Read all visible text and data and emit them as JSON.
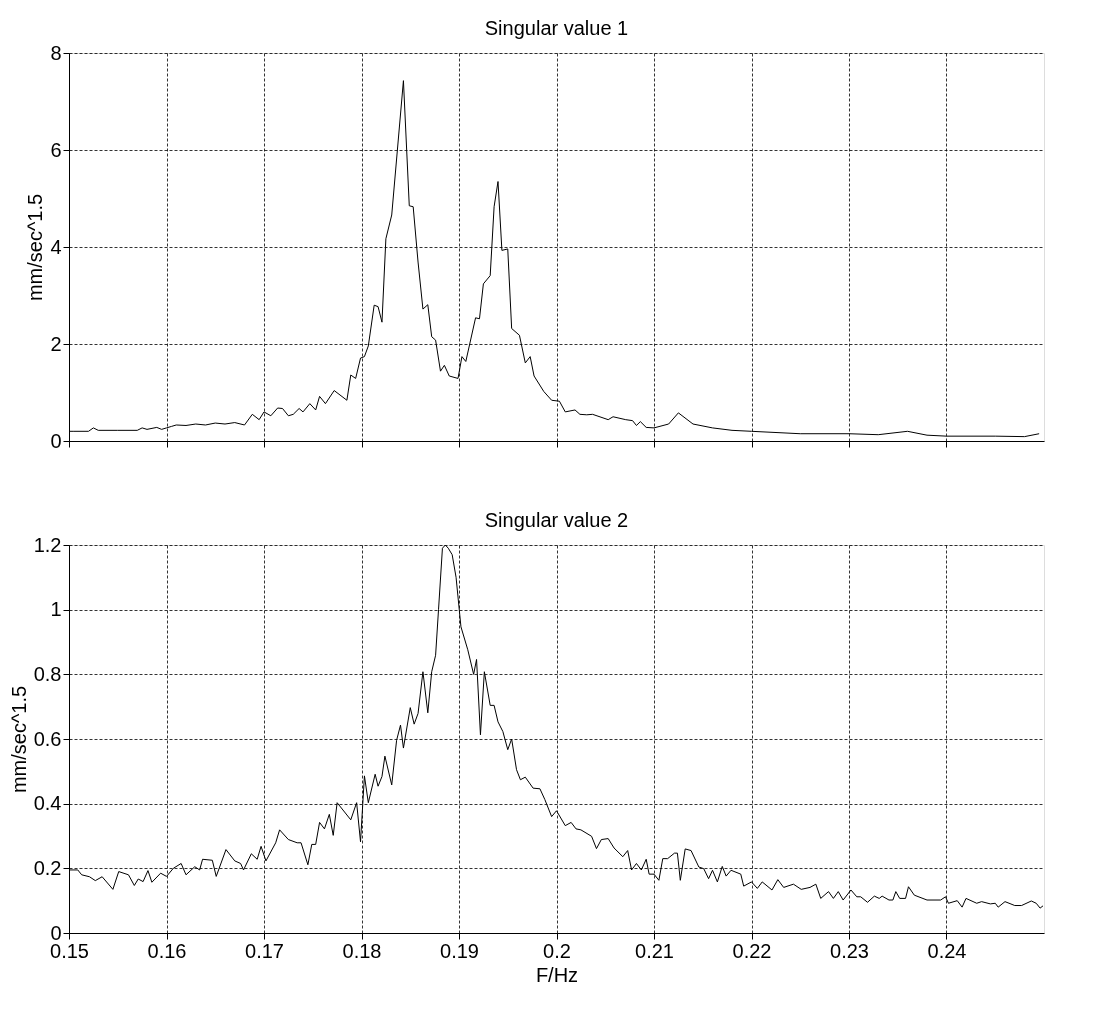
{
  "chart_data": [
    {
      "type": "line",
      "title": "Singular value 1",
      "ylabel": "mm/sec^1.5",
      "color": "#000000",
      "grid": true,
      "tick_labels": "y",
      "line_style": "solid",
      "xlim": [
        0.15,
        0.25
      ],
      "xticks": [
        0.15,
        0.16,
        0.17,
        0.18,
        0.19,
        0.2,
        0.21,
        0.22,
        0.23,
        0.24
      ],
      "ylim": [
        0,
        8
      ],
      "yticks": [
        0,
        2,
        4,
        6,
        8
      ],
      "x": [
        0.15,
        0.1505,
        0.152,
        0.1525,
        0.153,
        0.155,
        0.157,
        0.1575,
        0.158,
        0.159,
        0.1595,
        0.16,
        0.1605,
        0.161,
        0.162,
        0.163,
        0.164,
        0.165,
        0.166,
        0.167,
        0.168,
        0.1688,
        0.1695,
        0.17,
        0.1707,
        0.1714,
        0.1719,
        0.1725,
        0.173,
        0.1736,
        0.174,
        0.1747,
        0.1753,
        0.1757,
        0.1763,
        0.1772,
        0.1785,
        0.1789,
        0.1794,
        0.1799,
        0.1803,
        0.1807,
        0.1813,
        0.1817,
        0.1821,
        0.1825,
        0.1831,
        0.1843,
        0.1849,
        0.1853,
        0.1858,
        0.1863,
        0.1868,
        0.1872,
        0.1876,
        0.1881,
        0.1885,
        0.189,
        0.1899,
        0.1903,
        0.1907,
        0.1917,
        0.1921,
        0.1925,
        0.1932,
        0.1936,
        0.194,
        0.1944,
        0.195,
        0.1954,
        0.1962,
        0.1968,
        0.1973,
        0.1977,
        0.1987,
        0.1995,
        0.2003,
        0.2009,
        0.2019,
        0.2024,
        0.2031,
        0.2037,
        0.2053,
        0.2058,
        0.2071,
        0.2078,
        0.2082,
        0.2086,
        0.2092,
        0.21,
        0.2115,
        0.2125,
        0.214,
        0.216,
        0.218,
        0.22,
        0.225,
        0.23,
        0.233,
        0.236,
        0.238,
        0.24,
        0.245,
        0.248,
        0.2495
      ],
      "values": [
        0.2,
        0.2,
        0.2,
        0.27,
        0.22,
        0.22,
        0.22,
        0.27,
        0.24,
        0.28,
        0.24,
        0.27,
        0.3,
        0.33,
        0.32,
        0.35,
        0.33,
        0.37,
        0.35,
        0.38,
        0.33,
        0.55,
        0.44,
        0.6,
        0.52,
        0.68,
        0.67,
        0.52,
        0.55,
        0.67,
        0.6,
        0.77,
        0.64,
        0.92,
        0.77,
        1.04,
        0.84,
        1.36,
        1.29,
        1.71,
        1.74,
        1.96,
        2.8,
        2.77,
        2.45,
        4.17,
        4.66,
        7.43,
        4.85,
        4.83,
        3.69,
        2.72,
        2.81,
        2.15,
        2.08,
        1.44,
        1.56,
        1.34,
        1.29,
        1.74,
        1.64,
        2.54,
        2.52,
        3.24,
        3.41,
        4.83,
        5.35,
        3.93,
        3.96,
        2.32,
        2.18,
        1.61,
        1.74,
        1.34,
        1.02,
        0.84,
        0.82,
        0.6,
        0.64,
        0.55,
        0.54,
        0.55,
        0.44,
        0.5,
        0.44,
        0.42,
        0.32,
        0.4,
        0.28,
        0.27,
        0.35,
        0.58,
        0.35,
        0.27,
        0.22,
        0.2,
        0.15,
        0.15,
        0.13,
        0.2,
        0.12,
        0.1,
        0.1,
        0.09,
        0.15
      ]
    },
    {
      "type": "line",
      "title": "Singular value 2",
      "xlabel": "F/Hz",
      "ylabel": "mm/sec^1.5",
      "color": "#000000",
      "grid": true,
      "line_style": "solid",
      "xlim": [
        0.15,
        0.25
      ],
      "xticks": [
        0.15,
        0.16,
        0.17,
        0.18,
        0.19,
        0.2,
        0.21,
        0.22,
        0.23,
        0.24
      ],
      "ylim": [
        0,
        1.2
      ],
      "yticks": [
        0,
        0.2,
        0.4,
        0.6,
        0.8,
        1,
        1.2
      ],
      "x": [
        0.15,
        0.1509,
        0.1513,
        0.1521,
        0.1527,
        0.1534,
        0.1545,
        0.1551,
        0.1561,
        0.1567,
        0.1571,
        0.1576,
        0.1581,
        0.1585,
        0.1594,
        0.16,
        0.1607,
        0.1615,
        0.162,
        0.1629,
        0.1634,
        0.1637,
        0.1647,
        0.1651,
        0.1661,
        0.167,
        0.1676,
        0.1679,
        0.1687,
        0.1693,
        0.1697,
        0.1702,
        0.1712,
        0.1716,
        0.1725,
        0.1734,
        0.1738,
        0.1745,
        0.1749,
        0.1753,
        0.1757,
        0.1762,
        0.1767,
        0.1771,
        0.1775,
        0.1789,
        0.1795,
        0.1799,
        0.1803,
        0.1807,
        0.1814,
        0.1817,
        0.1821,
        0.1824,
        0.1831,
        0.1836,
        0.184,
        0.1843,
        0.185,
        0.1854,
        0.1858,
        0.1863,
        0.1868,
        0.1872,
        0.1876,
        0.1879,
        0.1883,
        0.1886,
        0.1889,
        0.1893,
        0.1897,
        0.1902,
        0.1909,
        0.1915,
        0.1918,
        0.1922,
        0.1926,
        0.1932,
        0.1936,
        0.194,
        0.1945,
        0.195,
        0.1954,
        0.1959,
        0.1963,
        0.1968,
        0.1976,
        0.1983,
        0.1988,
        0.1995,
        0.2,
        0.2009,
        0.2015,
        0.202,
        0.2025,
        0.2036,
        0.2041,
        0.2046,
        0.2053,
        0.2059,
        0.2068,
        0.2073,
        0.2077,
        0.2082,
        0.2087,
        0.2092,
        0.2095,
        0.21,
        0.2105,
        0.2109,
        0.2114,
        0.2121,
        0.2124,
        0.2127,
        0.2132,
        0.2138,
        0.2146,
        0.2151,
        0.2156,
        0.216,
        0.2165,
        0.217,
        0.2174,
        0.2179,
        0.2189,
        0.2192,
        0.22,
        0.2206,
        0.2211,
        0.2221,
        0.2227,
        0.2233,
        0.2243,
        0.2251,
        0.226,
        0.2266,
        0.2271,
        0.2279,
        0.2284,
        0.2289,
        0.2294,
        0.2302,
        0.2308,
        0.2312,
        0.2319,
        0.2326,
        0.2331,
        0.2334,
        0.2341,
        0.2345,
        0.2348,
        0.2352,
        0.2358,
        0.2361,
        0.2367,
        0.238,
        0.2394,
        0.2399,
        0.2402,
        0.2411,
        0.2416,
        0.242,
        0.2431,
        0.2436,
        0.2445,
        0.245,
        0.2453,
        0.246,
        0.247,
        0.2477,
        0.2487,
        0.2492,
        0.2496,
        0.2499
      ],
      "values": [
        0.195,
        0.195,
        0.18,
        0.174,
        0.162,
        0.174,
        0.135,
        0.19,
        0.18,
        0.147,
        0.167,
        0.159,
        0.193,
        0.157,
        0.185,
        0.175,
        0.2,
        0.215,
        0.18,
        0.205,
        0.195,
        0.228,
        0.225,
        0.175,
        0.258,
        0.223,
        0.215,
        0.195,
        0.245,
        0.228,
        0.268,
        0.223,
        0.279,
        0.319,
        0.289,
        0.279,
        0.279,
        0.211,
        0.274,
        0.274,
        0.342,
        0.322,
        0.367,
        0.302,
        0.403,
        0.35,
        0.403,
        0.282,
        0.486,
        0.403,
        0.491,
        0.454,
        0.484,
        0.547,
        0.458,
        0.596,
        0.643,
        0.572,
        0.697,
        0.646,
        0.679,
        0.808,
        0.681,
        0.808,
        0.859,
        1.0,
        1.19,
        1.2,
        1.19,
        1.17,
        1.1,
        0.947,
        0.876,
        0.8,
        0.846,
        0.613,
        0.808,
        0.704,
        0.704,
        0.653,
        0.623,
        0.567,
        0.6,
        0.505,
        0.474,
        0.482,
        0.448,
        0.446,
        0.413,
        0.36,
        0.378,
        0.332,
        0.342,
        0.322,
        0.319,
        0.299,
        0.261,
        0.289,
        0.292,
        0.263,
        0.236,
        0.255,
        0.195,
        0.215,
        0.195,
        0.228,
        0.182,
        0.182,
        0.163,
        0.23,
        0.23,
        0.247,
        0.247,
        0.163,
        0.26,
        0.255,
        0.204,
        0.199,
        0.168,
        0.194,
        0.158,
        0.206,
        0.176,
        0.194,
        0.182,
        0.145,
        0.158,
        0.138,
        0.158,
        0.133,
        0.165,
        0.141,
        0.151,
        0.135,
        0.141,
        0.151,
        0.107,
        0.128,
        0.107,
        0.128,
        0.102,
        0.133,
        0.112,
        0.112,
        0.095,
        0.114,
        0.107,
        0.114,
        0.102,
        0.102,
        0.128,
        0.107,
        0.107,
        0.143,
        0.117,
        0.102,
        0.102,
        0.112,
        0.092,
        0.1,
        0.08,
        0.107,
        0.092,
        0.097,
        0.09,
        0.092,
        0.08,
        0.097,
        0.085,
        0.085,
        0.099,
        0.092,
        0.077,
        0.084
      ]
    }
  ]
}
